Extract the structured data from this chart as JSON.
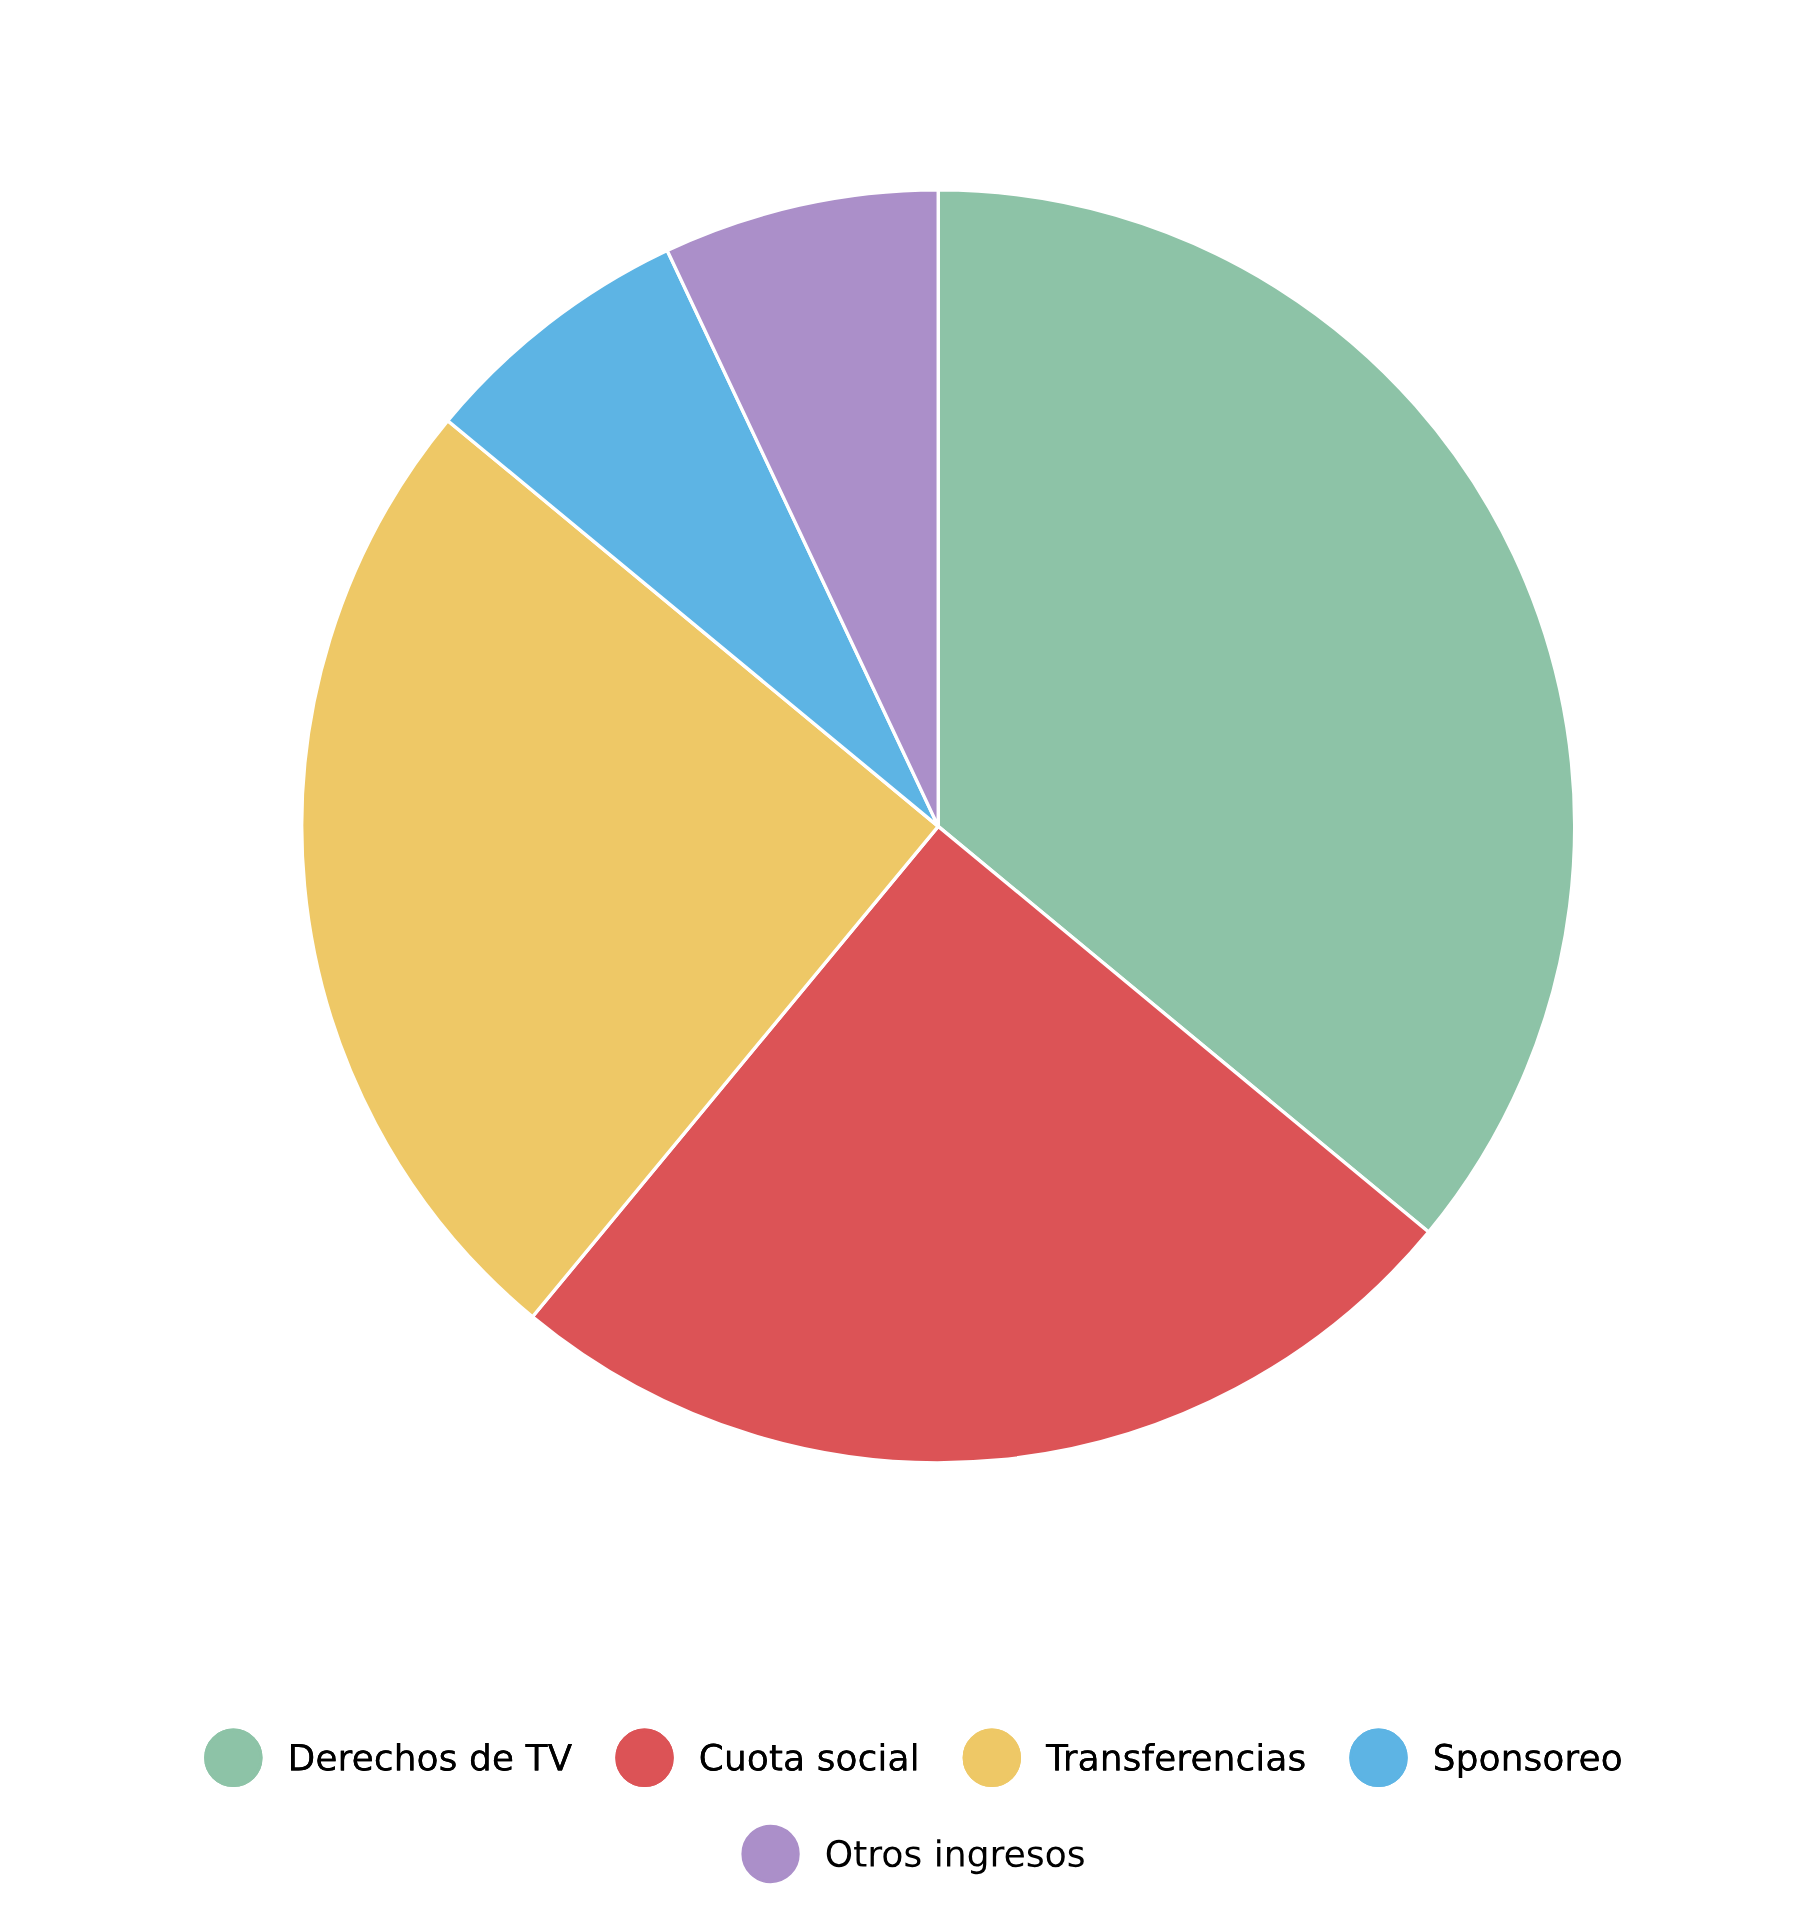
{
  "chart_data": {
    "type": "pie",
    "categories": [
      "Derechos de TV",
      "Cuota social",
      "Transferencias",
      "Sponsoreo",
      "Otros ingresos"
    ],
    "values": [
      36,
      25,
      25,
      7,
      7
    ],
    "colors": [
      "#8dc3a7",
      "#dc5356",
      "#eec866",
      "#5db4e4",
      "#ab8fc9"
    ],
    "legend": "bottom"
  }
}
